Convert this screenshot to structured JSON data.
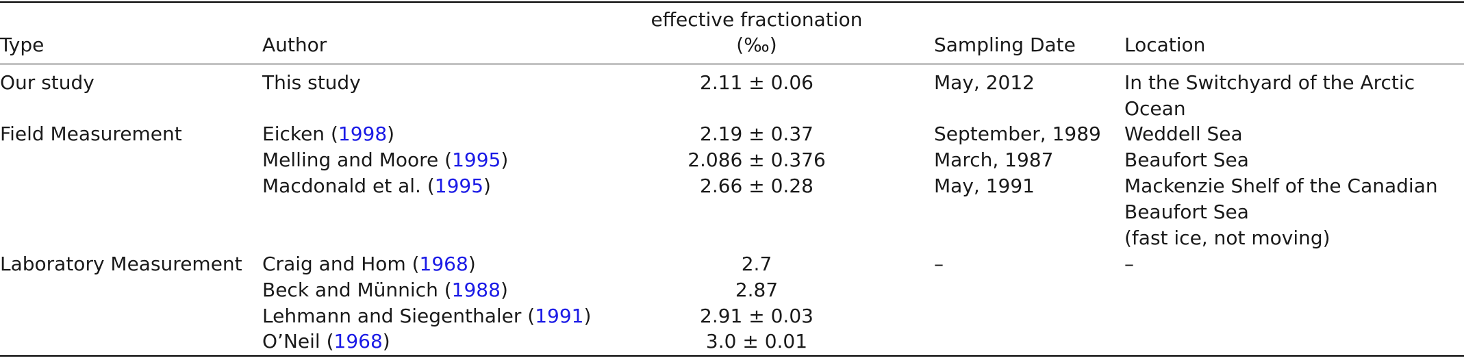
{
  "header": {
    "type": "Type",
    "author": "Author",
    "fractionation_line1": "effective fractionation",
    "fractionation_line2": "(‰)",
    "sampling_date": "Sampling Date",
    "location": "Location"
  },
  "rows": [
    {
      "type": "Our study",
      "author_prefix": "This study",
      "author_year": "",
      "author_suffix": "",
      "fractionation": "2.11 ± 0.06",
      "date": "May, 2012",
      "location_lines": [
        "In the Switchyard of the Arctic",
        "Ocean"
      ]
    },
    {
      "type": "Field Measurement",
      "author_prefix": "Eicken (",
      "author_year": "1998",
      "author_suffix": ")",
      "fractionation": "2.19 ± 0.37",
      "date": "September, 1989",
      "location_lines": [
        "Weddell Sea"
      ]
    },
    {
      "type": "",
      "author_prefix": "Melling and Moore (",
      "author_year": "1995",
      "author_suffix": ")",
      "fractionation": "2.086 ± 0.376",
      "date": "March, 1987",
      "location_lines": [
        "Beaufort Sea"
      ]
    },
    {
      "type": "",
      "author_prefix": "Macdonald et al. (",
      "author_year": "1995",
      "author_suffix": ")",
      "fractionation": "2.66 ± 0.28",
      "date": "May, 1991",
      "location_lines": [
        "Mackenzie Shelf of the Canadian",
        "Beaufort Sea",
        "(fast ice, not moving)"
      ]
    },
    {
      "type": "Laboratory Measurement",
      "author_prefix": "Craig and Hom (",
      "author_year": "1968",
      "author_suffix": ")",
      "fractionation": "2.7",
      "date": "–",
      "location_lines": [
        "–"
      ]
    },
    {
      "type": "",
      "author_prefix": "Beck and Münnich (",
      "author_year": "1988",
      "author_suffix": ")",
      "fractionation": "2.87",
      "date": "",
      "location_lines": []
    },
    {
      "type": "",
      "author_prefix": "Lehmann and Siegenthaler (",
      "author_year": "1991",
      "author_suffix": ")",
      "fractionation": "2.91 ± 0.03",
      "date": "",
      "location_lines": []
    },
    {
      "type": "",
      "author_prefix": "O’Neil (",
      "author_year": "1968",
      "author_suffix": ")",
      "fractionation": "3.0 ± 0.01",
      "date": "",
      "location_lines": []
    }
  ],
  "colors": {
    "citation_link": "#1a1ae6",
    "text": "#1a1a1a",
    "rule": "#000000"
  }
}
